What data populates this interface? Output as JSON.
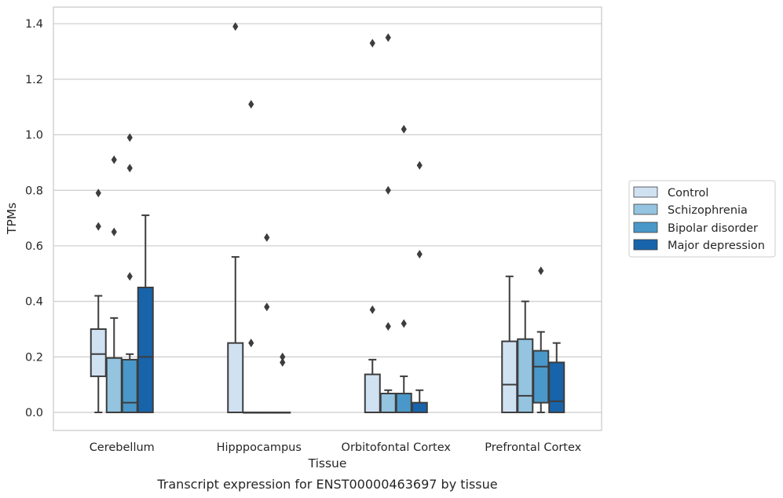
{
  "caption": "Transcript expression for ENST00000463697 by tissue",
  "colors": {
    "Control": "#d0e1f2",
    "Schizophrenia": "#94c4df",
    "Bipolar disorder": "#4a98c9",
    "Major depression": "#1764ab",
    "box_line": "#3d3d3d",
    "grid": "#cccccc",
    "frame": "#cccccc"
  },
  "chart_data": {
    "type": "box",
    "xlabel": "Tissue",
    "ylabel": "TPMs",
    "ylim": [
      -0.065,
      1.46
    ],
    "yticks": [
      0.0,
      0.2,
      0.4,
      0.6,
      0.8,
      1.0,
      1.2,
      1.4
    ],
    "ytick_labels": [
      "0.0",
      "0.2",
      "0.4",
      "0.6",
      "0.8",
      "1.0",
      "1.2",
      "1.4"
    ],
    "grid": true,
    "legend_position": "right",
    "categories": [
      "Cerebellum",
      "Hipppocampus",
      "Orbitofontal Cortex",
      "Prefrontal Cortex"
    ],
    "series": [
      {
        "name": "Control",
        "boxes": [
          {
            "whisker_low": 0.0,
            "q1": 0.13,
            "median": 0.21,
            "q3": 0.3,
            "whisker_high": 0.42,
            "outliers": [
              0.67,
              0.79
            ]
          },
          {
            "whisker_low": 0.0,
            "q1": 0.0,
            "median": 0.0,
            "q3": 0.25,
            "whisker_high": 0.56,
            "outliers": [
              1.39
            ]
          },
          {
            "whisker_low": 0.0,
            "q1": 0.0,
            "median": 0.0,
            "q3": 0.137,
            "whisker_high": 0.19,
            "outliers": [
              0.37,
              1.33
            ]
          },
          {
            "whisker_low": 0.0,
            "q1": 0.0,
            "median": 0.1,
            "q3": 0.256,
            "whisker_high": 0.49,
            "outliers": []
          }
        ]
      },
      {
        "name": "Schizophrenia",
        "boxes": [
          {
            "whisker_low": 0.0,
            "q1": 0.0,
            "median": 0.0,
            "q3": 0.196,
            "whisker_high": 0.34,
            "outliers": [
              0.65,
              0.91
            ]
          },
          {
            "whisker_low": 0.0,
            "q1": 0.0,
            "median": 0.0,
            "q3": 0.0,
            "whisker_high": 0.0,
            "outliers": [
              0.25,
              1.11
            ]
          },
          {
            "whisker_low": 0.0,
            "q1": 0.0,
            "median": 0.0,
            "q3": 0.068,
            "whisker_high": 0.08,
            "outliers": [
              0.31,
              0.8,
              1.35
            ]
          },
          {
            "whisker_low": 0.0,
            "q1": 0.0,
            "median": 0.06,
            "q3": 0.264,
            "whisker_high": 0.4,
            "outliers": []
          }
        ]
      },
      {
        "name": "Bipolar disorder",
        "boxes": [
          {
            "whisker_low": 0.0,
            "q1": 0.0,
            "median": 0.035,
            "q3": 0.19,
            "whisker_high": 0.21,
            "outliers": [
              0.49,
              0.88,
              0.99
            ]
          },
          {
            "whisker_low": 0.0,
            "q1": 0.0,
            "median": 0.0,
            "q3": 0.0,
            "whisker_high": 0.0,
            "outliers": [
              0.38,
              0.63
            ]
          },
          {
            "whisker_low": 0.0,
            "q1": 0.0,
            "median": 0.0,
            "q3": 0.068,
            "whisker_high": 0.13,
            "outliers": [
              0.32,
              1.02
            ]
          },
          {
            "whisker_low": 0.0,
            "q1": 0.035,
            "median": 0.165,
            "q3": 0.222,
            "whisker_high": 0.29,
            "outliers": [
              0.51
            ]
          }
        ]
      },
      {
        "name": "Major depression",
        "boxes": [
          {
            "whisker_low": 0.0,
            "q1": 0.0,
            "median": 0.2,
            "q3": 0.45,
            "whisker_high": 0.71,
            "outliers": []
          },
          {
            "whisker_low": 0.0,
            "q1": 0.0,
            "median": 0.0,
            "q3": 0.0,
            "whisker_high": 0.0,
            "outliers": [
              0.18,
              0.2
            ]
          },
          {
            "whisker_low": 0.0,
            "q1": 0.0,
            "median": 0.0,
            "q3": 0.035,
            "whisker_high": 0.08,
            "outliers": [
              0.57,
              0.89
            ]
          },
          {
            "whisker_low": 0.0,
            "q1": 0.0,
            "median": 0.04,
            "q3": 0.18,
            "whisker_high": 0.25,
            "outliers": []
          }
        ]
      }
    ]
  }
}
